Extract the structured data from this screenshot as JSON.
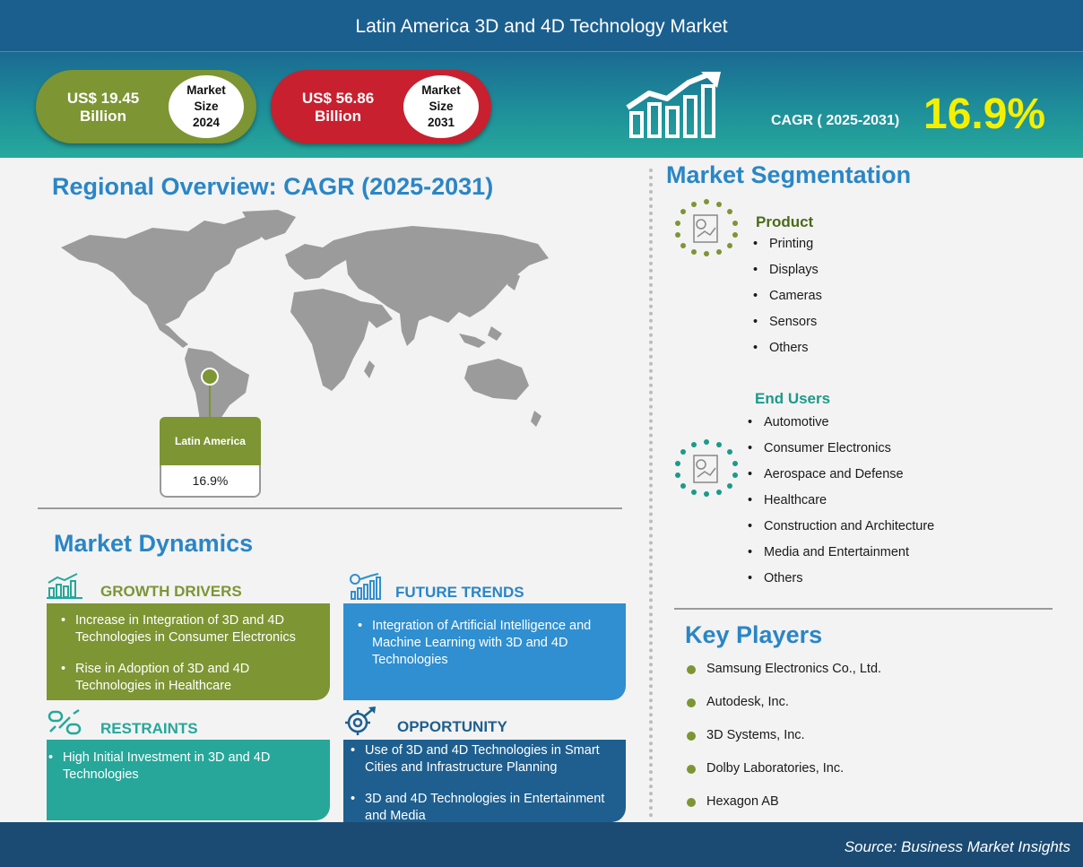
{
  "header": {
    "title": "Latin America 3D and 4D Technology Market"
  },
  "stats": {
    "size_2024": {
      "value_line1": "US$ 19.45",
      "value_line2": "Billion",
      "label_line1": "Market",
      "label_line2": "Size",
      "label_line3": "2024",
      "color": "#7d9533"
    },
    "size_2031": {
      "value_line1": "US$ 56.86",
      "value_line2": "Billion",
      "label_line1": "Market",
      "label_line2": "Size",
      "label_line3": "2031",
      "color": "#c8202f"
    },
    "cagr_label": "CAGR ( 2025-2031)",
    "cagr_value": "16.9%"
  },
  "regional": {
    "title": "Regional Overview: CAGR (2025-2031)",
    "region_name": "Latin America",
    "region_value": "16.9%"
  },
  "dynamics": {
    "title": "Market Dynamics",
    "growth_drivers": {
      "title": "GROWTH DRIVERS",
      "items": [
        "Increase  in Integration of 3D and 4D Technologies in Consumer Electronics",
        "Rise in Adoption of 3D and 4D Technologies in Healthcare"
      ]
    },
    "future_trends": {
      "title": "FUTURE TRENDS",
      "items": [
        "Integration of Artificial Intelligence and Machine Learning with 3D and 4D Technologies"
      ]
    },
    "restraints": {
      "title": "RESTRAINTS",
      "items": [
        "High Initial Investment in 3D and 4D Technologies"
      ]
    },
    "opportunity": {
      "title": "OPPORTUNITY",
      "items": [
        "Use of 3D and 4D Technologies in Smart Cities and Infrastructure  Planning",
        "3D and 4D Technologies in Entertainment and Media"
      ]
    }
  },
  "segmentation": {
    "title": "Market Segmentation",
    "product": {
      "title": "Product",
      "items": [
        "Printing",
        "Displays",
        "Cameras",
        "Sensors",
        "Others"
      ]
    },
    "end_users": {
      "title": "End Users",
      "items": [
        "Automotive",
        "Consumer Electronics",
        "Aerospace and Defense",
        "Healthcare",
        "Construction and Architecture",
        "Media and Entertainment",
        "Others"
      ]
    }
  },
  "key_players": {
    "title": "Key Players",
    "items": [
      "Samsung Electronics Co., Ltd.",
      "Autodesk, Inc.",
      "3D Systems, Inc.",
      "Dolby Laboratories,  Inc.",
      "Hexagon AB"
    ]
  },
  "footer": {
    "source": "Source: Business Market Insights"
  },
  "colors": {
    "header_blue": "#1b5f8f",
    "heading_blue": "#2a86c6",
    "olive": "#7d9533",
    "red": "#c8202f",
    "teal": "#26a79a",
    "sky": "#2f8fd0",
    "navy": "#1e5f8f",
    "cagr_yellow": "#f4f000"
  }
}
